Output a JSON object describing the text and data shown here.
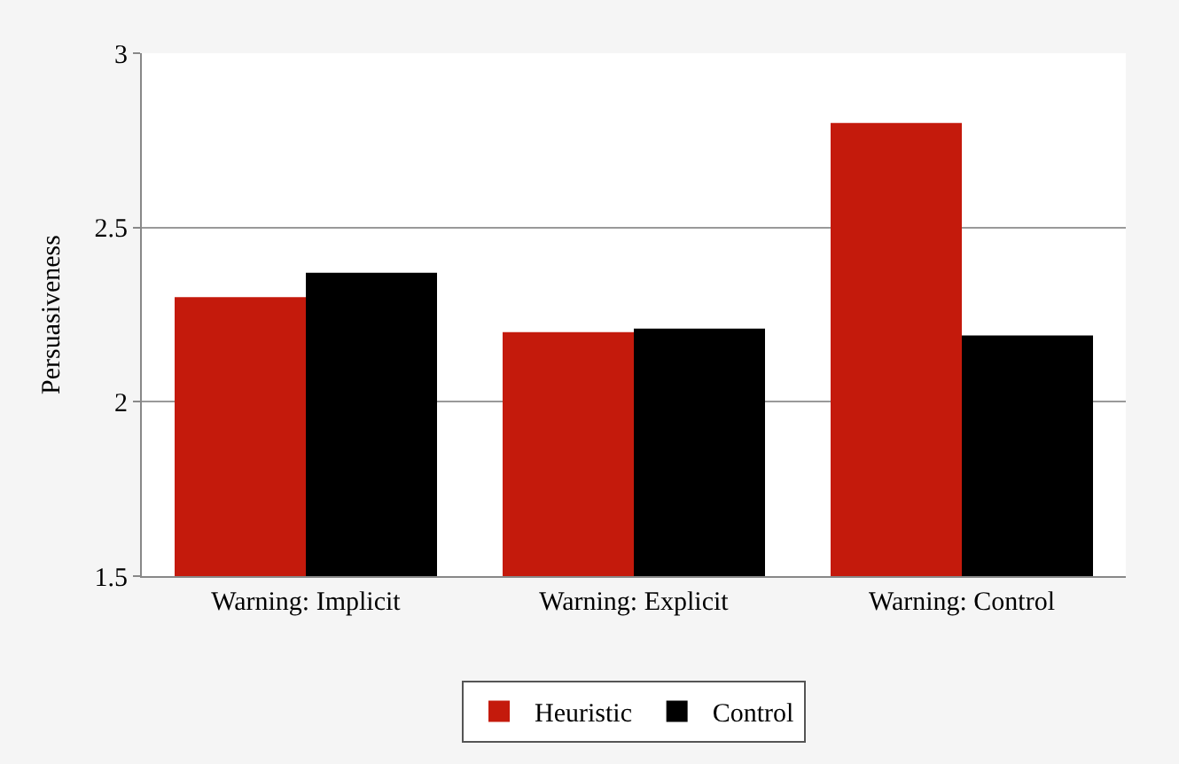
{
  "chart_data": {
    "type": "bar",
    "ylabel": "Persuasiveness",
    "categories": [
      "Warning: Implicit",
      "Warning: Explicit",
      "Warning: Control"
    ],
    "series": [
      {
        "name": "Heuristic",
        "color": "#c41a0c",
        "values": [
          2.3,
          2.2,
          2.8
        ]
      },
      {
        "name": "Control",
        "color": "#000000",
        "values": [
          2.37,
          2.21,
          2.19
        ]
      }
    ],
    "ylim": [
      1.5,
      3
    ],
    "yticks": [
      1.5,
      2,
      2.5,
      3
    ],
    "grid": "y",
    "legend": "bottom"
  }
}
